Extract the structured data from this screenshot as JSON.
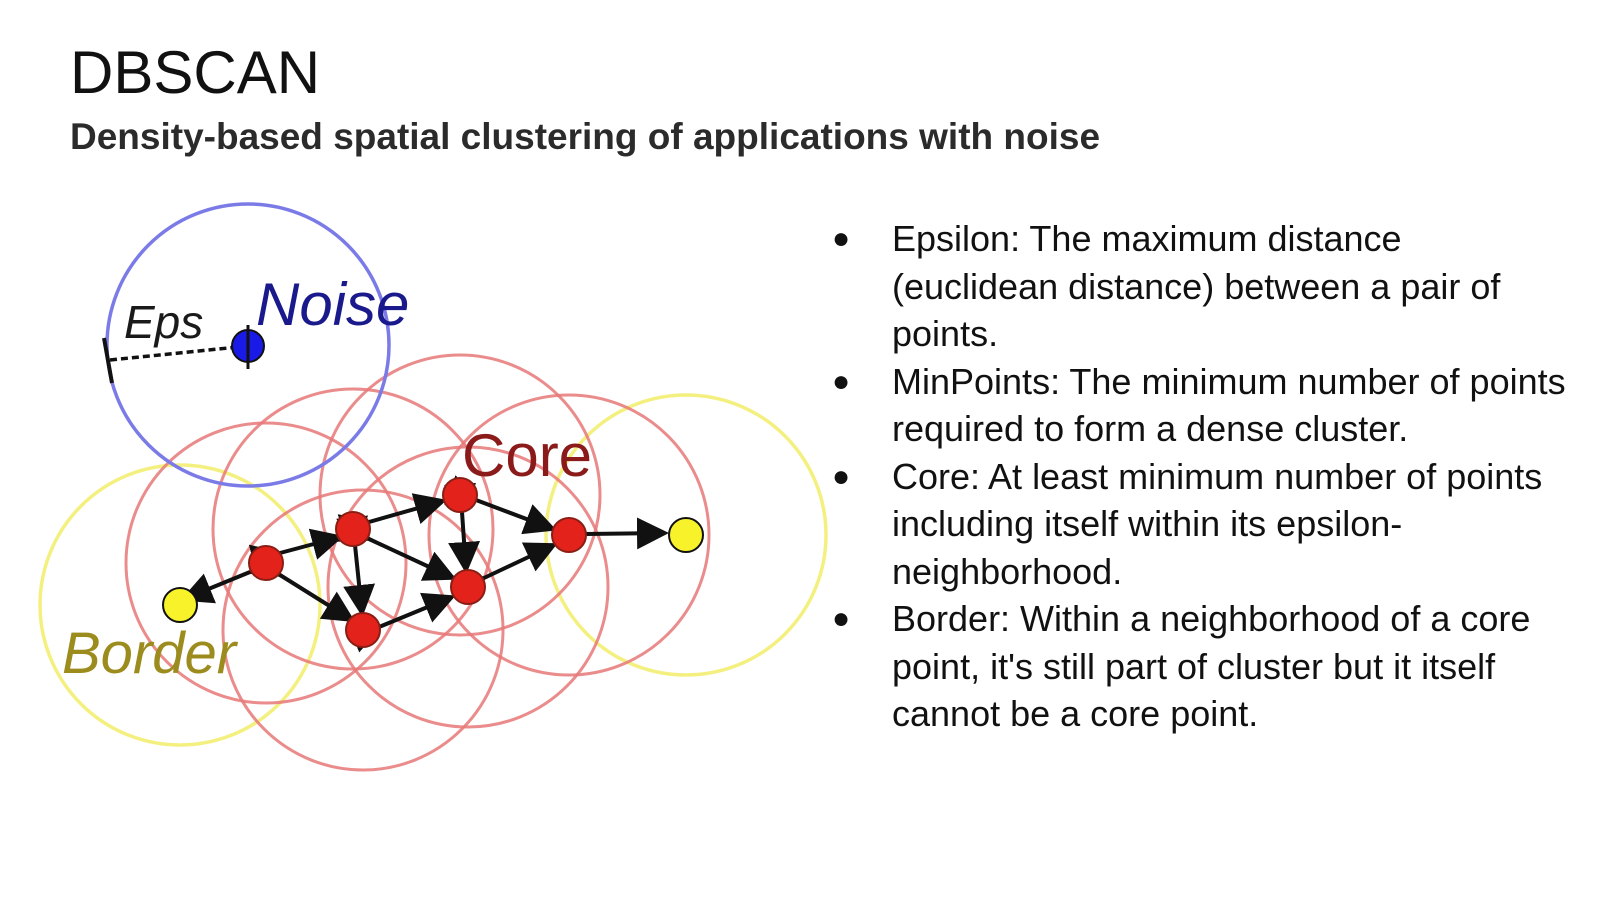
{
  "slide": {
    "title": "DBSCAN",
    "subtitle": "Density-based spatial clustering of applications with noise"
  },
  "diagram": {
    "labels": {
      "eps": "Eps",
      "noise": "Noise",
      "core": "Core",
      "border": "Border"
    },
    "colors": {
      "noise_circle": "#7b7be8",
      "noise_point": "#1a1ae6",
      "noise_label": "#1a1a8c",
      "core_circle": "#e87878",
      "core_point": "#e3231b",
      "core_label": "#8b1a1a",
      "border_circle": "#f4f080",
      "border_point": "#f7f22a",
      "border_label": "#9c8c1e"
    }
  },
  "bullets": [
    {
      "bullet": "●",
      "text": "Epsilon: The maximum distance (euclidean distance) between a pair of points."
    },
    {
      "bullet": "●",
      "text": "MinPoints: The minimum number of points required to form a dense cluster."
    },
    {
      "bullet": "●",
      "text": "Core: At least minimum number of points including itself within its epsilon-neighborhood."
    },
    {
      "bullet": "●",
      "text": "Border: Within a neighborhood of a core point, it's still part of cluster but it itself cannot be a core point."
    }
  ]
}
